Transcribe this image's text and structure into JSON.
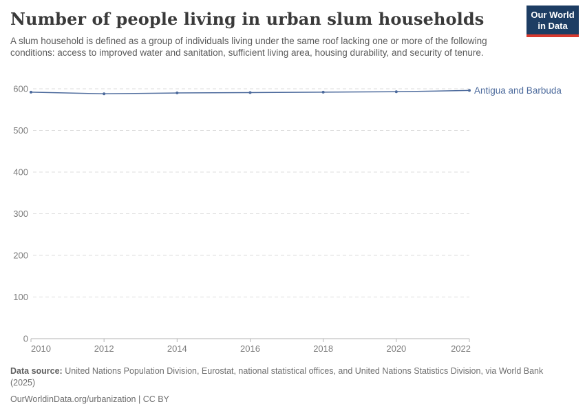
{
  "header": {
    "title": "Number of people living in urban slum households",
    "subtitle": "A slum household is defined as a group of individuals living under the same roof lacking one or more of the following conditions: access to improved water and sanitation, sufficient living area, housing durability, and security of tenure."
  },
  "logo": {
    "line1": "Our World",
    "line2": "in Data",
    "bg_color": "#1d3d63",
    "stripe_color": "#d8392e"
  },
  "chart_data": {
    "type": "line",
    "title": "Number of people living in urban slum households",
    "x": [
      2010,
      2012,
      2014,
      2016,
      2018,
      2020,
      2022
    ],
    "series": [
      {
        "name": "Antigua and Barbuda",
        "values": [
          592,
          588,
          590,
          591,
          592,
          593,
          596
        ],
        "color": "#4C6A9C"
      }
    ],
    "xlabel": "",
    "ylabel": "",
    "ylim": [
      0,
      600
    ],
    "yticks": [
      0,
      100,
      200,
      300,
      400,
      500,
      600
    ],
    "xticks": [
      2010,
      2012,
      2014,
      2016,
      2018,
      2020,
      2022
    ],
    "grid": "horizontal-dashed",
    "legend_position": "line-end-label",
    "axis_color": "#b3b3b3",
    "grid_color": "#dcdcdc",
    "tick_label_color": "#7d7d7d"
  },
  "footer": {
    "source_label": "Data source:",
    "source_text": "United Nations Population Division, Eurostat, national statistical offices, and United Nations Statistics Division, via World Bank (2025)",
    "license_line": "OurWorldinData.org/urbanization | CC BY"
  }
}
